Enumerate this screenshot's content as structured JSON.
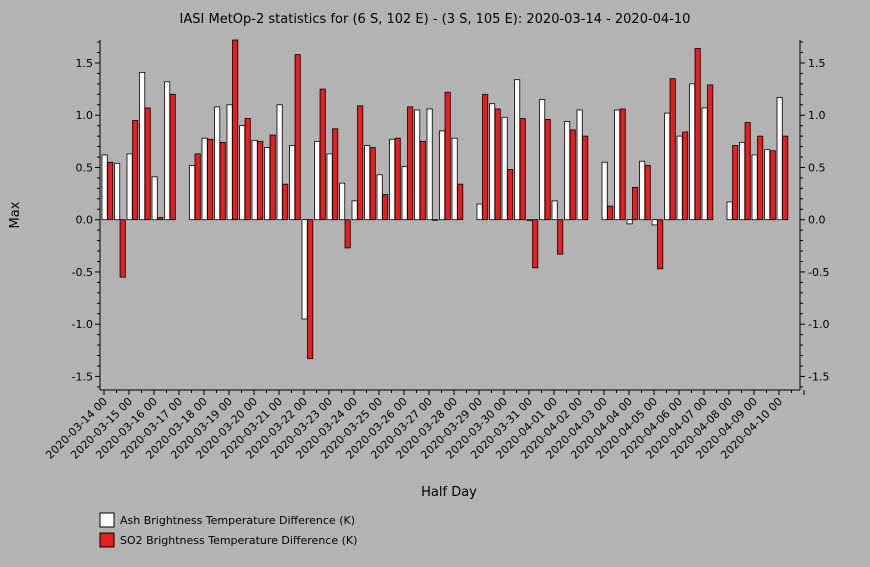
{
  "chart_data": {
    "type": "bar",
    "title": "IASI MetOp-2 statistics for (6 S, 102 E) - (3 S, 105 E): 2020-03-14 - 2020-04-10",
    "xlabel": "Half Day",
    "ylabel": "Max",
    "ylim": [
      -1.63,
      1.72
    ],
    "yticks": [
      "-1.5",
      "-1.0",
      "-0.5",
      "0.0",
      "0.5",
      "1.0",
      "1.5"
    ],
    "categories": [
      "2020-03-14 00",
      "2020-03-14 12",
      "2020-03-15 00",
      "2020-03-15 12",
      "2020-03-16 00",
      "2020-03-16 12",
      "2020-03-17 00",
      "2020-03-17 12",
      "2020-03-18 00",
      "2020-03-18 12",
      "2020-03-19 00",
      "2020-03-19 12",
      "2020-03-20 00",
      "2020-03-20 12",
      "2020-03-21 00",
      "2020-03-21 12",
      "2020-03-22 00",
      "2020-03-22 12",
      "2020-03-23 00",
      "2020-03-23 12",
      "2020-03-24 00",
      "2020-03-24 12",
      "2020-03-25 00",
      "2020-03-25 12",
      "2020-03-26 00",
      "2020-03-26 12",
      "2020-03-27 00",
      "2020-03-27 12",
      "2020-03-28 00",
      "2020-03-28 12",
      "2020-03-29 00",
      "2020-03-29 12",
      "2020-03-30 00",
      "2020-03-30 12",
      "2020-03-31 00",
      "2020-03-31 12",
      "2020-04-01 00",
      "2020-04-01 12",
      "2020-04-02 00",
      "2020-04-02 12",
      "2020-04-03 00",
      "2020-04-03 12",
      "2020-04-04 00",
      "2020-04-04 12",
      "2020-04-05 00",
      "2020-04-05 12",
      "2020-04-06 00",
      "2020-04-06 12",
      "2020-04-07 00",
      "2020-04-07 12",
      "2020-04-08 00",
      "2020-04-08 12",
      "2020-04-09 00",
      "2020-04-09 12",
      "2020-04-10 00",
      "2020-04-10 12"
    ],
    "x_tick_labels": [
      "2020-03-14 00",
      "2020-03-15 00",
      "2020-03-16 00",
      "2020-03-17 00",
      "2020-03-18 00",
      "2020-03-19 00",
      "2020-03-20 00",
      "2020-03-21 00",
      "2020-03-22 00",
      "2020-03-23 00",
      "2020-03-24 00",
      "2020-03-25 00",
      "2020-03-26 00",
      "2020-03-27 00",
      "2020-03-28 00",
      "2020-03-29 00",
      "2020-03-30 00",
      "2020-03-31 00",
      "2020-04-01 00",
      "2020-04-02 00",
      "2020-04-03 00",
      "2020-04-04 00",
      "2020-04-05 00",
      "2020-04-06 00",
      "2020-04-07 00",
      "2020-04-08 00",
      "2020-04-09 00",
      "2020-04-10 00"
    ],
    "series": [
      {
        "name": "Ash Brightness Temperature Difference (K)",
        "color": "#ffffff",
        "values": [
          0.62,
          0.54,
          0.63,
          1.41,
          0.41,
          1.32,
          null,
          0.52,
          0.78,
          1.08,
          1.1,
          0.9,
          0.76,
          0.69,
          1.1,
          0.71,
          -0.95,
          0.75,
          0.63,
          0.35,
          0.18,
          0.71,
          0.43,
          0.77,
          0.51,
          1.05,
          1.06,
          0.85,
          0.78,
          null,
          0.15,
          1.11,
          0.98,
          1.34,
          -0.01,
          1.15,
          0.18,
          0.94,
          1.05,
          null,
          0.55,
          1.05,
          -0.04,
          0.56,
          -0.05,
          1.02,
          0.8,
          1.3,
          1.07,
          null,
          0.17,
          0.74,
          0.62,
          0.67,
          1.17,
          null
        ]
      },
      {
        "name": "SO2 Brightness Temperature Difference (K)",
        "color": "#e62020",
        "values": [
          0.55,
          -0.55,
          0.95,
          1.07,
          0.02,
          1.2,
          null,
          0.63,
          0.77,
          0.74,
          1.72,
          0.97,
          0.75,
          0.81,
          0.34,
          1.58,
          -1.33,
          1.25,
          0.87,
          -0.27,
          1.09,
          0.69,
          0.24,
          0.78,
          1.08,
          0.75,
          0.0,
          1.22,
          0.34,
          null,
          1.2,
          1.06,
          0.48,
          0.97,
          -0.46,
          0.96,
          -0.33,
          0.86,
          0.8,
          null,
          0.13,
          1.06,
          0.31,
          0.52,
          -0.47,
          1.35,
          0.84,
          1.64,
          1.29,
          null,
          0.71,
          0.93,
          0.8,
          0.66,
          0.8,
          null
        ]
      }
    ],
    "legend_placement": "bottom-left",
    "grid": false
  }
}
